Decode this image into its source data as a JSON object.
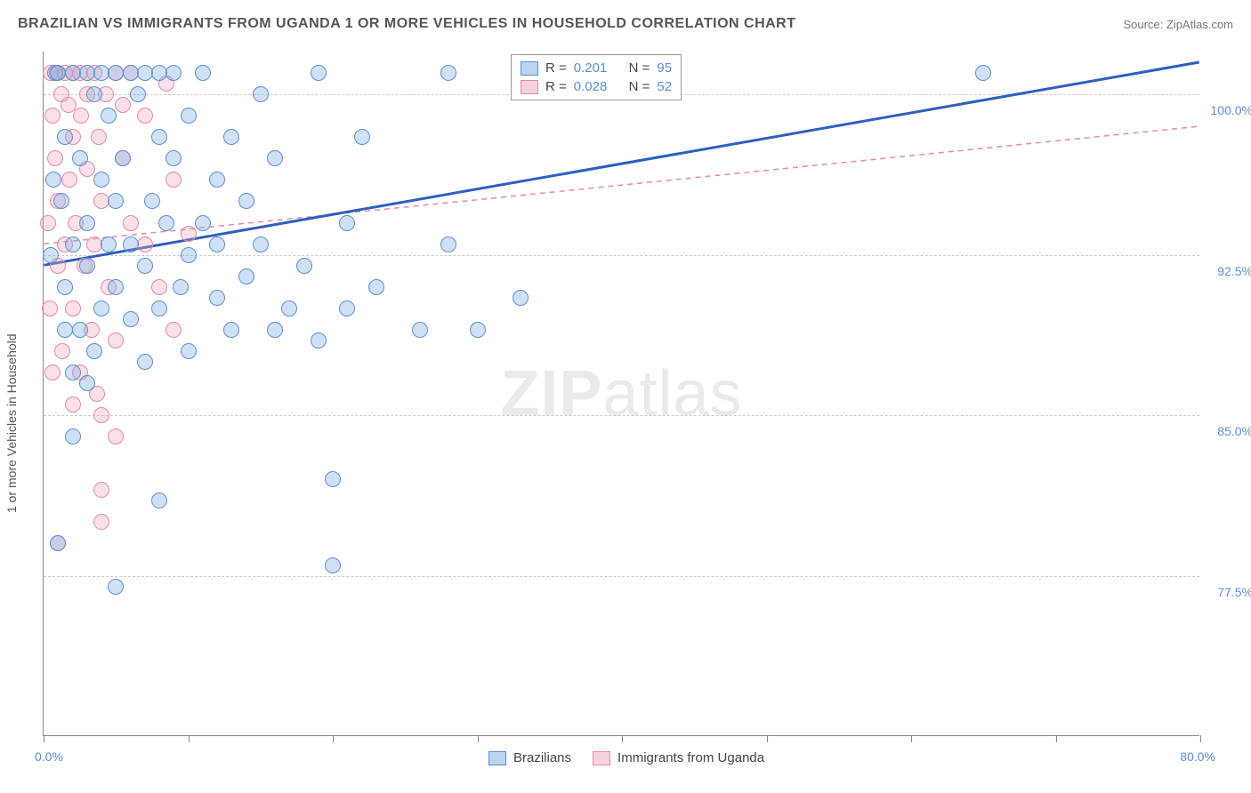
{
  "title": "BRAZILIAN VS IMMIGRANTS FROM UGANDA 1 OR MORE VEHICLES IN HOUSEHOLD CORRELATION CHART",
  "source_label": "Source: ZipAtlas.com",
  "watermark_zip": "ZIP",
  "watermark_atlas": "atlas",
  "chart": {
    "type": "scatter",
    "y_axis_label": "1 or more Vehicles in Household",
    "xlim": [
      0.0,
      80.0
    ],
    "ylim": [
      70.0,
      102.0
    ],
    "x_min_label": "0.0%",
    "x_max_label": "80.0%",
    "x_ticks": [
      0,
      10,
      20,
      30,
      40,
      50,
      60,
      70,
      80
    ],
    "y_gridlines": [
      77.5,
      85.0,
      92.5,
      100.0
    ],
    "y_tick_labels": [
      "77.5%",
      "85.0%",
      "92.5%",
      "100.0%"
    ],
    "background_color": "#ffffff",
    "grid_color": "#cccccc",
    "series": {
      "blue": {
        "label": "Brazilians",
        "color_fill": "rgba(120,170,225,0.35)",
        "color_stroke": "#5b8fd6",
        "r_value": "0.201",
        "n_value": "95",
        "trend": {
          "x1": 0,
          "y1": 92.0,
          "x2": 80,
          "y2": 101.5,
          "stroke": "#2b5fc0",
          "width": 3,
          "dash": "none"
        },
        "points": [
          [
            0.5,
            92.5
          ],
          [
            0.8,
            101
          ],
          [
            1,
            101
          ],
          [
            1.2,
            95
          ],
          [
            1.5,
            98
          ],
          [
            1.5,
            91
          ],
          [
            2,
            101
          ],
          [
            2,
            87
          ],
          [
            2,
            93
          ],
          [
            2.5,
            97
          ],
          [
            2.5,
            89
          ],
          [
            3,
            101
          ],
          [
            3,
            94
          ],
          [
            3,
            92
          ],
          [
            3.5,
            100
          ],
          [
            3.5,
            88
          ],
          [
            4,
            101
          ],
          [
            4,
            96
          ],
          [
            4,
            90
          ],
          [
            4.5,
            93
          ],
          [
            4.5,
            99
          ],
          [
            5,
            101
          ],
          [
            5,
            91
          ],
          [
            5,
            95
          ],
          [
            5.5,
            97
          ],
          [
            6,
            101
          ],
          [
            6,
            89.5
          ],
          [
            6,
            93
          ],
          [
            6.5,
            100
          ],
          [
            7,
            101
          ],
          [
            7,
            92
          ],
          [
            7,
            87.5
          ],
          [
            7.5,
            95
          ],
          [
            8,
            101
          ],
          [
            8,
            98
          ],
          [
            8,
            90
          ],
          [
            8.5,
            94
          ],
          [
            9,
            97
          ],
          [
            9,
            101
          ],
          [
            9.5,
            91
          ],
          [
            10,
            92.5
          ],
          [
            10,
            99
          ],
          [
            10,
            88
          ],
          [
            11,
            94
          ],
          [
            11,
            101
          ],
          [
            12,
            96
          ],
          [
            12,
            90.5
          ],
          [
            12,
            93
          ],
          [
            13,
            89
          ],
          [
            13,
            98
          ],
          [
            14,
            95
          ],
          [
            14,
            91.5
          ],
          [
            15,
            100
          ],
          [
            15,
            93
          ],
          [
            16,
            89
          ],
          [
            16,
            97
          ],
          [
            17,
            90
          ],
          [
            18,
            92
          ],
          [
            19,
            101
          ],
          [
            19,
            88.5
          ],
          [
            20,
            82
          ],
          [
            21,
            94
          ],
          [
            21,
            90
          ],
          [
            22,
            98
          ],
          [
            23,
            91
          ],
          [
            26,
            89
          ],
          [
            28,
            93
          ],
          [
            20,
            78
          ],
          [
            5,
            77
          ],
          [
            8,
            81
          ],
          [
            3,
            86.5
          ],
          [
            2,
            84
          ],
          [
            1,
            79
          ],
          [
            1.5,
            89
          ],
          [
            0.7,
            96
          ],
          [
            28,
            101
          ],
          [
            30,
            89
          ],
          [
            33,
            90.5
          ],
          [
            65,
            101
          ]
        ]
      },
      "pink": {
        "label": "Immigrants from Uganda",
        "color_fill": "rgba(240,165,185,0.35)",
        "color_stroke": "#e68aa6",
        "r_value": "0.028",
        "n_value": "52",
        "trend": {
          "x1": 0,
          "y1": 93.0,
          "x2": 80,
          "y2": 98.5,
          "stroke": "#e68aa6",
          "width": 1.5,
          "dash": "6,5"
        },
        "points": [
          [
            0.5,
            101
          ],
          [
            0.6,
            99
          ],
          [
            0.8,
            97
          ],
          [
            1,
            95
          ],
          [
            1,
            92
          ],
          [
            1.2,
            100
          ],
          [
            1.3,
            88
          ],
          [
            1.5,
            101
          ],
          [
            1.5,
            93
          ],
          [
            1.8,
            96
          ],
          [
            2,
            101
          ],
          [
            2,
            90
          ],
          [
            2,
            98
          ],
          [
            2.2,
            94
          ],
          [
            2.5,
            101
          ],
          [
            2.5,
            87
          ],
          [
            2.8,
            92
          ],
          [
            3,
            100
          ],
          [
            3,
            96.5
          ],
          [
            3.3,
            89
          ],
          [
            3.5,
            101
          ],
          [
            3.5,
            93
          ],
          [
            3.8,
            98
          ],
          [
            4,
            85
          ],
          [
            4,
            95
          ],
          [
            4.3,
            100
          ],
          [
            4.5,
            91
          ],
          [
            5,
            101
          ],
          [
            5,
            88.5
          ],
          [
            5,
            84
          ],
          [
            5.5,
            97
          ],
          [
            6,
            94
          ],
          [
            6,
            101
          ],
          [
            7,
            93
          ],
          [
            8,
            91
          ],
          [
            9,
            96
          ],
          [
            9,
            89
          ],
          [
            10,
            93.5
          ],
          [
            4,
            81.5
          ],
          [
            1,
            79
          ],
          [
            2,
            85.5
          ],
          [
            4,
            80
          ],
          [
            0.6,
            87
          ],
          [
            0.4,
            90
          ],
          [
            0.3,
            94
          ],
          [
            1.7,
            99.5
          ],
          [
            2.6,
            99
          ],
          [
            5.5,
            99.5
          ],
          [
            7,
            99
          ],
          [
            8.5,
            100.5
          ],
          [
            0.9,
            101
          ],
          [
            3.7,
            86
          ]
        ]
      }
    },
    "legend_top": {
      "r_label": "R =",
      "n_label": "N ="
    }
  }
}
